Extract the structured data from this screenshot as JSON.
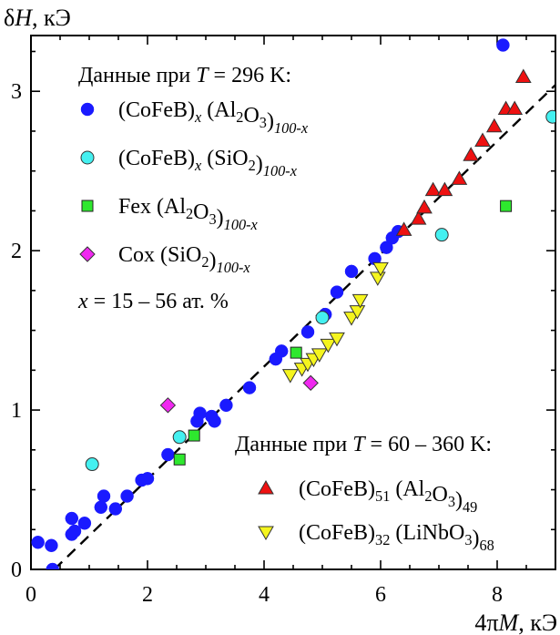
{
  "chart_data": {
    "type": "scatter",
    "xlabel": "4πM, кЭ",
    "ylabel": "δH, кЭ",
    "xlim": [
      0,
      9
    ],
    "ylim": [
      0,
      3.35
    ],
    "x_ticks": [
      0,
      2,
      4,
      6,
      8
    ],
    "y_ticks": [
      0,
      1,
      2,
      3
    ],
    "x_tick_labels": [
      "0",
      "2",
      "4",
      "6",
      "8"
    ],
    "y_tick_labels": [
      "0",
      "1",
      "2",
      "3"
    ],
    "legend_top_title": "Данные при T = 296 K:",
    "legend_bottom_title": "Данные при T = 60 – 360 K:",
    "composition_note": "x = 15 – 56 ат. %",
    "trend_line": {
      "x": [
        0.4,
        9.0
      ],
      "y": [
        0.0,
        3.04
      ],
      "style": "dashed",
      "color": "#000000"
    },
    "series": [
      {
        "name": "(CoFeB)x(Al2O3)100-x",
        "legend_label": "(CoFeB)x (Al2O3)100-x",
        "marker": "circle",
        "color": "#1a1aff",
        "group": "T=296K",
        "points": [
          [
            0.12,
            0.17
          ],
          [
            0.35,
            0.15
          ],
          [
            0.37,
            0.0
          ],
          [
            0.7,
            0.22
          ],
          [
            0.75,
            0.24
          ],
          [
            0.7,
            0.32
          ],
          [
            0.92,
            0.29
          ],
          [
            1.2,
            0.39
          ],
          [
            1.25,
            0.46
          ],
          [
            1.45,
            0.38
          ],
          [
            1.65,
            0.46
          ],
          [
            1.9,
            0.56
          ],
          [
            2.0,
            0.57
          ],
          [
            2.35,
            0.72
          ],
          [
            2.55,
            0.83
          ],
          [
            2.85,
            0.93
          ],
          [
            2.9,
            0.98
          ],
          [
            3.1,
            0.96
          ],
          [
            3.15,
            0.93
          ],
          [
            3.35,
            1.03
          ],
          [
            3.75,
            1.14
          ],
          [
            4.2,
            1.32
          ],
          [
            4.3,
            1.37
          ],
          [
            4.75,
            1.49
          ],
          [
            5.05,
            1.6
          ],
          [
            5.25,
            1.74
          ],
          [
            5.5,
            1.87
          ],
          [
            5.9,
            1.95
          ],
          [
            6.1,
            2.02
          ],
          [
            6.2,
            2.08
          ],
          [
            6.3,
            2.12
          ],
          [
            8.1,
            3.29
          ]
        ]
      },
      {
        "name": "(CoFeB)x(SiO2)100-x",
        "legend_label": "(CoFeB)x (SiO2)100-x",
        "marker": "circle",
        "color": "#44f0f0",
        "group": "T=296K",
        "points": [
          [
            1.05,
            0.66
          ],
          [
            2.55,
            0.83
          ],
          [
            5.0,
            1.58
          ],
          [
            7.05,
            2.1
          ],
          [
            8.95,
            2.84
          ]
        ]
      },
      {
        "name": "Fex(Al2O3)100-x",
        "legend_label": "Fex (Al2O3)100-x",
        "marker": "square",
        "color": "#2ee82e",
        "group": "T=296K",
        "points": [
          [
            2.55,
            0.69
          ],
          [
            2.8,
            0.84
          ],
          [
            4.55,
            1.36
          ],
          [
            8.15,
            2.28
          ]
        ]
      },
      {
        "name": "Cox(SiO2)100-x",
        "legend_label": "Cox (SiO2)100-x",
        "marker": "diamond",
        "color": "#f028f0",
        "group": "T=296K",
        "points": [
          [
            2.35,
            1.03
          ],
          [
            4.8,
            1.17
          ]
        ]
      },
      {
        "name": "(CoFeB)51(Al2O3)49",
        "legend_label": "(CoFeB)51 (Al2O3)49",
        "marker": "triangle-up",
        "color": "#ee1111",
        "group": "T=60-360K",
        "points": [
          [
            6.4,
            2.13
          ],
          [
            6.65,
            2.2
          ],
          [
            6.75,
            2.27
          ],
          [
            6.9,
            2.38
          ],
          [
            7.1,
            2.38
          ],
          [
            7.35,
            2.45
          ],
          [
            7.55,
            2.6
          ],
          [
            7.75,
            2.69
          ],
          [
            7.95,
            2.78
          ],
          [
            8.15,
            2.89
          ],
          [
            8.3,
            2.89
          ],
          [
            8.45,
            3.09
          ]
        ]
      },
      {
        "name": "(CoFeB)32(LiNbO3)68",
        "legend_label": "(CoFeB)32 (LiNbO3)68",
        "marker": "triangle-down",
        "color": "#f5f51e",
        "group": "T=60-360K",
        "points": [
          [
            4.45,
            1.22
          ],
          [
            4.65,
            1.26
          ],
          [
            4.75,
            1.29
          ],
          [
            4.85,
            1.32
          ],
          [
            4.95,
            1.35
          ],
          [
            5.1,
            1.41
          ],
          [
            5.25,
            1.45
          ],
          [
            5.5,
            1.58
          ],
          [
            5.6,
            1.62
          ],
          [
            5.65,
            1.69
          ],
          [
            5.95,
            1.83
          ],
          [
            6.0,
            1.89
          ]
        ]
      }
    ]
  }
}
